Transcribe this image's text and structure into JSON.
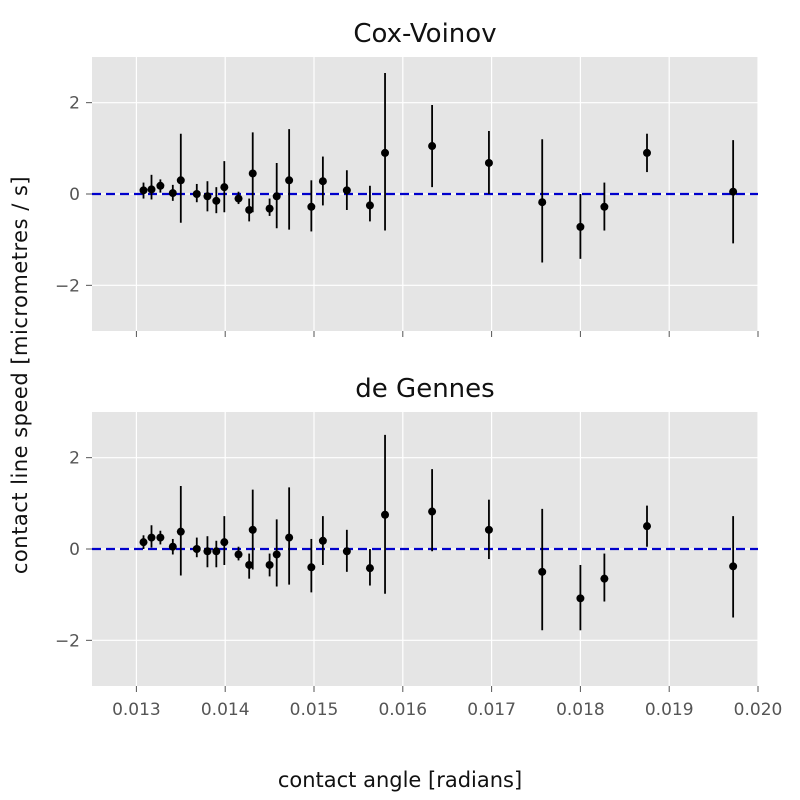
{
  "figure": {
    "xlabel": "contact angle [radians]",
    "ylabel": "contact line speed [micrometres / s]"
  },
  "chart_data": [
    {
      "type": "scatter",
      "title": "Cox-Voinov",
      "xlim": [
        0.0125,
        0.02
      ],
      "ylim": [
        -3.0,
        3.0
      ],
      "xticks": [
        0.013,
        0.014,
        0.015,
        0.016,
        0.017,
        0.018,
        0.019,
        0.02
      ],
      "xtick_labels": [],
      "yticks": [
        -2,
        0,
        2
      ],
      "ytick_labels": [
        "−2",
        "0",
        "2"
      ],
      "grid": true,
      "reference_line": {
        "y": 0,
        "style": "dashed",
        "color": "#0000cc"
      },
      "series": [
        {
          "errorbars": true,
          "points": [
            {
              "x": 0.01308,
              "y": 0.08,
              "lo": -0.1,
              "hi": 0.25
            },
            {
              "x": 0.01317,
              "y": 0.1,
              "lo": -0.12,
              "hi": 0.42
            },
            {
              "x": 0.01327,
              "y": 0.18,
              "lo": 0.03,
              "hi": 0.32
            },
            {
              "x": 0.01341,
              "y": 0.02,
              "lo": -0.15,
              "hi": 0.2
            },
            {
              "x": 0.0135,
              "y": 0.3,
              "lo": -0.63,
              "hi": 1.32
            },
            {
              "x": 0.01368,
              "y": 0.0,
              "lo": -0.18,
              "hi": 0.22
            },
            {
              "x": 0.0138,
              "y": -0.05,
              "lo": -0.38,
              "hi": 0.28
            },
            {
              "x": 0.0139,
              "y": -0.15,
              "lo": -0.42,
              "hi": 0.15
            },
            {
              "x": 0.01399,
              "y": 0.15,
              "lo": -0.4,
              "hi": 0.72
            },
            {
              "x": 0.01415,
              "y": -0.1,
              "lo": -0.22,
              "hi": 0.05
            },
            {
              "x": 0.01427,
              "y": -0.35,
              "lo": -0.6,
              "hi": -0.1
            },
            {
              "x": 0.01431,
              "y": 0.45,
              "lo": -0.4,
              "hi": 1.35
            },
            {
              "x": 0.0145,
              "y": -0.32,
              "lo": -0.48,
              "hi": -0.1
            },
            {
              "x": 0.01458,
              "y": -0.05,
              "lo": -0.75,
              "hi": 0.68
            },
            {
              "x": 0.01472,
              "y": 0.3,
              "lo": -0.78,
              "hi": 1.42
            },
            {
              "x": 0.01497,
              "y": -0.28,
              "lo": -0.82,
              "hi": 0.3
            },
            {
              "x": 0.0151,
              "y": 0.28,
              "lo": -0.25,
              "hi": 0.82
            },
            {
              "x": 0.01537,
              "y": 0.08,
              "lo": -0.35,
              "hi": 0.52
            },
            {
              "x": 0.01563,
              "y": -0.25,
              "lo": -0.6,
              "hi": 0.18
            },
            {
              "x": 0.0158,
              "y": 0.9,
              "lo": -0.8,
              "hi": 2.65
            },
            {
              "x": 0.01633,
              "y": 1.05,
              "lo": 0.15,
              "hi": 1.95
            },
            {
              "x": 0.01697,
              "y": 0.68,
              "lo": 0.0,
              "hi": 1.38
            },
            {
              "x": 0.01757,
              "y": -0.18,
              "lo": -1.5,
              "hi": 1.2
            },
            {
              "x": 0.018,
              "y": -0.72,
              "lo": -1.42,
              "hi": 0.0
            },
            {
              "x": 0.01827,
              "y": -0.28,
              "lo": -0.8,
              "hi": 0.25
            },
            {
              "x": 0.01875,
              "y": 0.9,
              "lo": 0.48,
              "hi": 1.32
            },
            {
              "x": 0.01972,
              "y": 0.05,
              "lo": -1.08,
              "hi": 1.18
            }
          ]
        }
      ]
    },
    {
      "type": "scatter",
      "title": "de Gennes",
      "xlim": [
        0.0125,
        0.02
      ],
      "ylim": [
        -3.0,
        3.0
      ],
      "xticks": [
        0.013,
        0.014,
        0.015,
        0.016,
        0.017,
        0.018,
        0.019,
        0.02
      ],
      "xtick_labels": [
        "0.013",
        "0.014",
        "0.015",
        "0.016",
        "0.017",
        "0.018",
        "0.019",
        "0.020"
      ],
      "yticks": [
        -2,
        0,
        2
      ],
      "ytick_labels": [
        "−2",
        "0",
        "2"
      ],
      "grid": true,
      "reference_line": {
        "y": 0,
        "style": "dashed",
        "color": "#0000cc"
      },
      "series": [
        {
          "errorbars": true,
          "points": [
            {
              "x": 0.01308,
              "y": 0.15,
              "lo": 0.0,
              "hi": 0.3
            },
            {
              "x": 0.01317,
              "y": 0.25,
              "lo": 0.03,
              "hi": 0.52
            },
            {
              "x": 0.01327,
              "y": 0.25,
              "lo": 0.1,
              "hi": 0.4
            },
            {
              "x": 0.01341,
              "y": 0.05,
              "lo": -0.12,
              "hi": 0.22
            },
            {
              "x": 0.0135,
              "y": 0.38,
              "lo": -0.58,
              "hi": 1.38
            },
            {
              "x": 0.01368,
              "y": 0.0,
              "lo": -0.18,
              "hi": 0.25
            },
            {
              "x": 0.0138,
              "y": -0.05,
              "lo": -0.4,
              "hi": 0.28
            },
            {
              "x": 0.0139,
              "y": -0.05,
              "lo": -0.4,
              "hi": 0.18
            },
            {
              "x": 0.01399,
              "y": 0.15,
              "lo": -0.35,
              "hi": 0.72
            },
            {
              "x": 0.01415,
              "y": -0.12,
              "lo": -0.25,
              "hi": 0.05
            },
            {
              "x": 0.01427,
              "y": -0.35,
              "lo": -0.65,
              "hi": -0.1
            },
            {
              "x": 0.01431,
              "y": 0.42,
              "lo": -0.45,
              "hi": 1.3
            },
            {
              "x": 0.0145,
              "y": -0.35,
              "lo": -0.6,
              "hi": -0.1
            },
            {
              "x": 0.01458,
              "y": -0.12,
              "lo": -0.82,
              "hi": 0.65
            },
            {
              "x": 0.01472,
              "y": 0.25,
              "lo": -0.78,
              "hi": 1.35
            },
            {
              "x": 0.01497,
              "y": -0.4,
              "lo": -0.95,
              "hi": 0.22
            },
            {
              "x": 0.0151,
              "y": 0.18,
              "lo": -0.35,
              "hi": 0.72
            },
            {
              "x": 0.01537,
              "y": -0.05,
              "lo": -0.5,
              "hi": 0.42
            },
            {
              "x": 0.01563,
              "y": -0.42,
              "lo": -0.8,
              "hi": 0.0
            },
            {
              "x": 0.0158,
              "y": 0.75,
              "lo": -0.98,
              "hi": 2.5
            },
            {
              "x": 0.01633,
              "y": 0.82,
              "lo": -0.05,
              "hi": 1.75
            },
            {
              "x": 0.01697,
              "y": 0.42,
              "lo": -0.22,
              "hi": 1.08
            },
            {
              "x": 0.01757,
              "y": -0.5,
              "lo": -1.78,
              "hi": 0.88
            },
            {
              "x": 0.018,
              "y": -1.08,
              "lo": -1.78,
              "hi": -0.35
            },
            {
              "x": 0.01827,
              "y": -0.65,
              "lo": -1.15,
              "hi": -0.1
            },
            {
              "x": 0.01875,
              "y": 0.5,
              "lo": 0.05,
              "hi": 0.95
            },
            {
              "x": 0.01972,
              "y": -0.38,
              "lo": -1.5,
              "hi": 0.72
            }
          ]
        }
      ]
    }
  ]
}
